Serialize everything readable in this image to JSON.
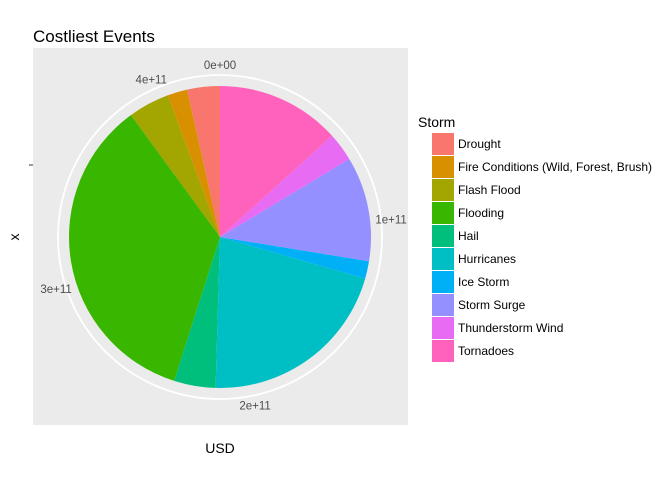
{
  "chart_data": {
    "type": "pie",
    "title": "Costliest Events",
    "xlabel": "USD",
    "ylabel": "x",
    "legend": {
      "title": "Storm",
      "placement": "right"
    },
    "categories": [
      "Drought",
      "Fire Conditions (Wild, Forest, Brush)",
      "Flash Flood",
      "Flooding",
      "Hail",
      "Hurricanes",
      "Ice Storm",
      "Storm Surge",
      "Thunderstorm Wind",
      "Tornadoes"
    ],
    "values": [
      15000000000,
      9000000000,
      19000000000,
      150000000000,
      19000000000,
      90000000000,
      8000000000,
      48000000000,
      13000000000,
      57000000000
    ],
    "colors": [
      "#F8766D",
      "#D89000",
      "#A3A500",
      "#39B600",
      "#00BF7D",
      "#00BFC4",
      "#00B0F6",
      "#9590FF",
      "#E76BF3",
      "#FF62BC"
    ],
    "ticks": [
      {
        "value": 0,
        "label": "0e+00"
      },
      {
        "value": 100000000000,
        "label": "1e+11"
      },
      {
        "value": 200000000000,
        "label": "2e+11"
      },
      {
        "value": 300000000000,
        "label": "3e+11"
      },
      {
        "value": 400000000000,
        "label": "4e+11"
      }
    ],
    "grid": true
  }
}
